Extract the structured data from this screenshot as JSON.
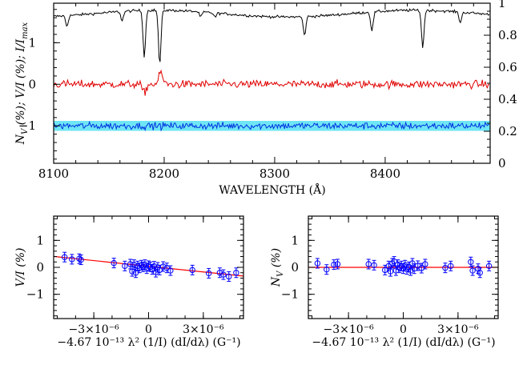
{
  "chart_data": [
    {
      "type": "line",
      "xlabel": "WAVELENGTH (Å)",
      "ylabel": "N_V (%); V/I (%); I/I_max",
      "ylabel_parts": [
        "N",
        "V",
        " (%); V/I (%); I/I",
        "max"
      ],
      "xlim": [
        8100,
        8495
      ],
      "ylim": [
        -1.9,
        1.95
      ],
      "y2lim": [
        0.0,
        1.0
      ],
      "xticks": [
        8100,
        8200,
        8300,
        8400
      ],
      "yticks": [
        -1,
        0,
        1
      ],
      "y2ticks": [
        0,
        0.2,
        0.4,
        0.6,
        0.8,
        1
      ],
      "y2tick_labels": [
        "0",
        "0.2",
        "0.4",
        "0.6",
        "0.8",
        "1"
      ],
      "series": [
        {
          "key": "intensity",
          "color": "#000000",
          "offset": 1.7,
          "noise": 0.03,
          "lines": [
            [
              8112,
              0.25
            ],
            [
              8162,
              0.22
            ],
            [
              8182,
              1.1
            ],
            [
              8196,
              1.3
            ],
            [
              8233,
              0.12
            ],
            [
              8246,
              0.1
            ],
            [
              8327,
              0.45
            ],
            [
              8388,
              0.45
            ],
            [
              8434,
              0.9
            ],
            [
              8468,
              0.25
            ]
          ]
        },
        {
          "key": "stokes_v",
          "color": "#e00000",
          "offset": 0.0,
          "noise": 0.09,
          "features": [
            [
              8182,
              -0.2
            ],
            [
              8197,
              0.28
            ]
          ]
        },
        {
          "key": "null",
          "color": "#0030e0",
          "offset": -1.0,
          "noise": 0.08,
          "band": [
            -1.12,
            -0.88
          ],
          "band_color": "#6fe6f5"
        }
      ]
    },
    {
      "type": "scatter",
      "xlabel": "−4.67 10⁻¹³ λ² (1/I) (dI/dλ) (G⁻¹)",
      "ylabel": "V/I (%)",
      "xlim": [
        -5.2e-06,
        5.2e-06
      ],
      "ylim": [
        -1.9,
        1.9
      ],
      "xticks": [
        -3e-06,
        0,
        3e-06
      ],
      "xtick_labels": [
        "−3×10⁻⁶",
        "0",
        "3×10⁻⁶"
      ],
      "yticks": [
        -1,
        0,
        1
      ],
      "fit": {
        "slope": -70000,
        "intercept": 0.04
      },
      "color": "#0000ff",
      "fit_color": "#ff0000",
      "points": [
        [
          -4.6e-06,
          0.38
        ],
        [
          -4.2e-06,
          0.3
        ],
        [
          -3.8e-06,
          0.32
        ],
        [
          -3.7e-06,
          0.28
        ],
        [
          -1.9e-06,
          0.16
        ],
        [
          -1.3e-06,
          0.05
        ],
        [
          -1e-06,
          0.12
        ],
        [
          -8e-07,
          0.1
        ],
        [
          -6e-07,
          0.05
        ],
        [
          -5e-07,
          -0.02
        ],
        [
          -4e-07,
          0.08
        ],
        [
          -3e-07,
          0.02
        ],
        [
          -2e-07,
          0.1
        ],
        [
          -1e-07,
          -0.05
        ],
        [
          0.0,
          0.06
        ],
        [
          1e-07,
          0.02
        ],
        [
          2e-07,
          -0.08
        ],
        [
          3e-07,
          0.04
        ],
        [
          5e-07,
          0.0
        ],
        [
          6e-07,
          -0.1
        ],
        [
          8e-07,
          0.03
        ],
        [
          1e-06,
          -0.02
        ],
        [
          1.2e-06,
          -0.12
        ],
        [
          -9e-07,
          -0.15
        ],
        [
          2.4e-06,
          -0.1
        ],
        [
          3.3e-06,
          -0.22
        ],
        [
          3.9e-06,
          -0.2
        ],
        [
          4.1e-06,
          -0.27
        ],
        [
          4.4e-06,
          -0.34
        ],
        [
          4.8e-06,
          -0.2
        ],
        [
          -7e-07,
          -0.2
        ],
        [
          4e-07,
          -0.18
        ]
      ]
    },
    {
      "type": "scatter",
      "xlabel": "−4.67 10⁻¹³ λ² (1/I) (dI/dλ) (G⁻¹)",
      "ylabel": "N_V (%)",
      "ylabel_parts": [
        "N",
        "V",
        " (%)"
      ],
      "xlim": [
        -5.2e-06,
        5.2e-06
      ],
      "ylim": [
        -1.9,
        1.9
      ],
      "xticks": [
        -3e-06,
        0,
        3e-06
      ],
      "xtick_labels": [
        "−3×10⁻⁶",
        "0",
        "3×10⁻⁶"
      ],
      "yticks": [
        -1,
        0,
        1
      ],
      "fit": {
        "slope": 0,
        "intercept": 0.0
      },
      "color": "#0000ff",
      "fit_color": "#ff0000",
      "points": [
        [
          -4.7e-06,
          0.15
        ],
        [
          -4.2e-06,
          -0.08
        ],
        [
          -3.8e-06,
          0.1
        ],
        [
          -3.6e-06,
          0.12
        ],
        [
          -1.9e-06,
          0.12
        ],
        [
          -1.6e-06,
          0.08
        ],
        [
          -1e-06,
          -0.1
        ],
        [
          -8e-07,
          0.05
        ],
        [
          -6e-07,
          0.15
        ],
        [
          -5e-07,
          0.22
        ],
        [
          -4e-07,
          -0.12
        ],
        [
          -3e-07,
          0.1
        ],
        [
          -2e-07,
          -0.02
        ],
        [
          -1e-07,
          0.05
        ],
        [
          0.0,
          -0.05
        ],
        [
          1e-07,
          0.08
        ],
        [
          2e-07,
          -0.08
        ],
        [
          3e-07,
          0.02
        ],
        [
          5e-07,
          0.15
        ],
        [
          6e-07,
          -0.05
        ],
        [
          8e-07,
          0.06
        ],
        [
          1e-06,
          -0.03
        ],
        [
          1.2e-06,
          0.12
        ],
        [
          -7e-07,
          -0.15
        ],
        [
          2.3e-06,
          -0.02
        ],
        [
          2.6e-06,
          0.05
        ],
        [
          3.7e-06,
          0.2
        ],
        [
          3.8e-06,
          -0.12
        ],
        [
          4.1e-06,
          -0.05
        ],
        [
          4.2e-06,
          -0.2
        ],
        [
          4.7e-06,
          0.05
        ],
        [
          4e-07,
          -0.12
        ]
      ]
    }
  ]
}
